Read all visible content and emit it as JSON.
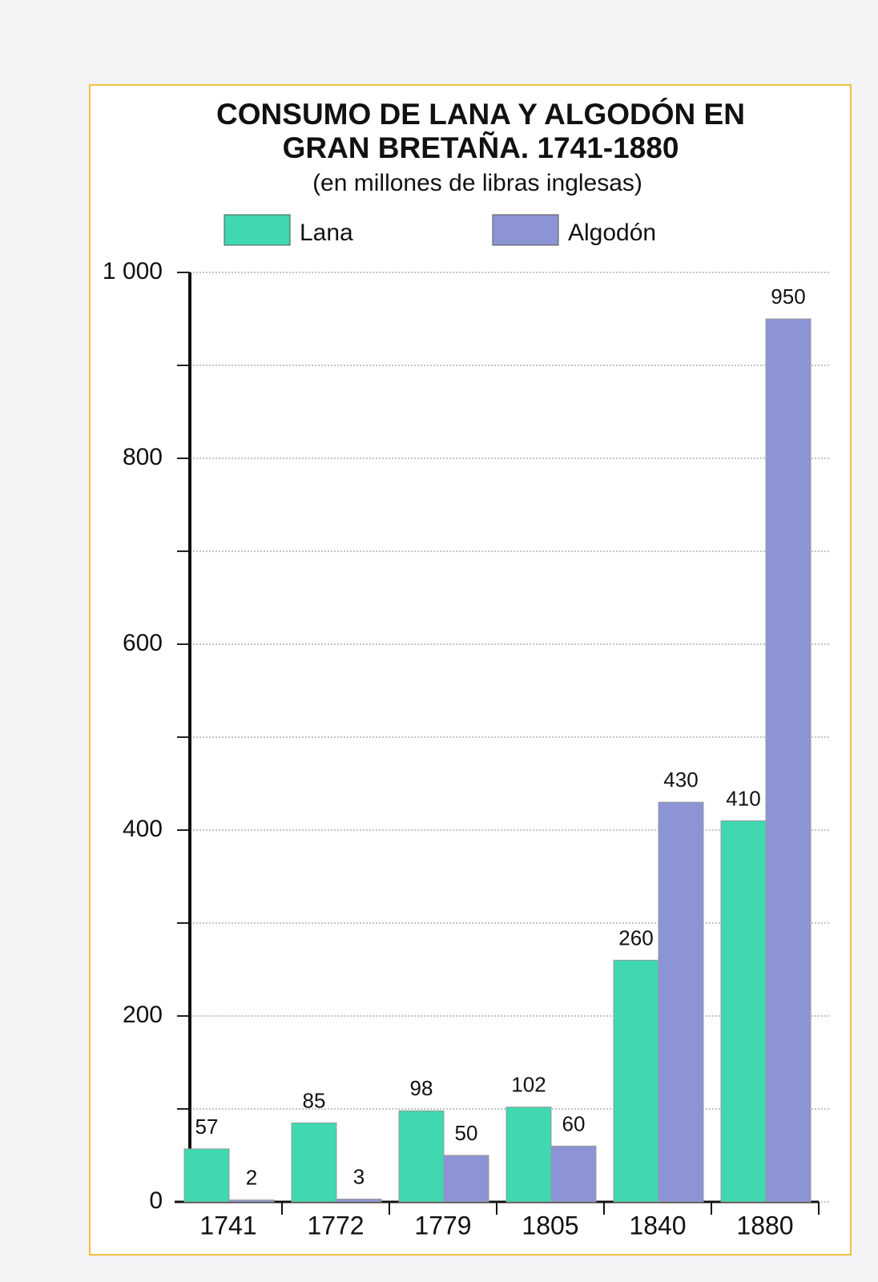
{
  "chart_data": {
    "type": "bar",
    "title": "CONSUMO DE LANA Y ALGODÓN EN GRAN BRETAÑA. 1741-1880",
    "subtitle": "(en millones de libras inglesas)",
    "categories": [
      "1741",
      "1772",
      "1779",
      "1805",
      "1840",
      "1880"
    ],
    "series": [
      {
        "name": "Lana",
        "color": "#40d8b0",
        "values": [
          57,
          85,
          98,
          102,
          260,
          410
        ]
      },
      {
        "name": "Algodón",
        "color": "#8c94d6",
        "values": [
          2,
          3,
          50,
          60,
          430,
          950
        ]
      }
    ],
    "ylim": [
      0,
      1000
    ],
    "yticks": [
      0,
      200,
      400,
      600,
      800,
      {
        "value": 1000,
        "label": "1 000"
      }
    ],
    "minor_yticks": [
      100,
      300,
      500,
      700,
      900
    ],
    "grid": true
  }
}
